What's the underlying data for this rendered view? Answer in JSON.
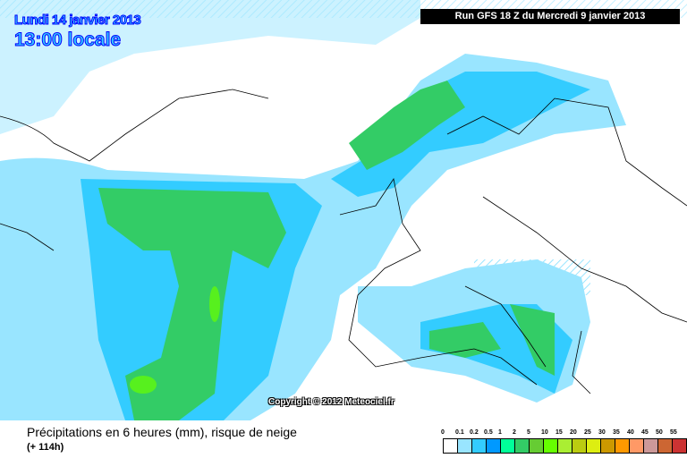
{
  "header": {
    "date": "Lundi 14 janvier 2013",
    "time": "13:00 locale",
    "run": "Run GFS 18 Z du Mercredi 9 janvier 2013"
  },
  "copyright": "Copyright © 2012 Meteociel.fr",
  "caption": {
    "title": "Précipitations en 6 heures (mm), risque de neige",
    "lead": "(+ 114h)"
  },
  "legend": {
    "labels": [
      "0",
      "0.1",
      "0.2",
      "0.5",
      "1",
      "2",
      "5",
      "10",
      "15",
      "20",
      "25",
      "30",
      "35",
      "40",
      "45",
      "50",
      "55"
    ],
    "colors": [
      "#ffffff",
      "#99e5ff",
      "#33ccff",
      "#0099ff",
      "#00ff99",
      "#33cc66",
      "#66cc33",
      "#66ff00",
      "#aaee33",
      "#bbcc11",
      "#ddee11",
      "#cc9900",
      "#ff9900",
      "#ff9966",
      "#cc9999",
      "#cc6633",
      "#cc3333"
    ]
  }
}
